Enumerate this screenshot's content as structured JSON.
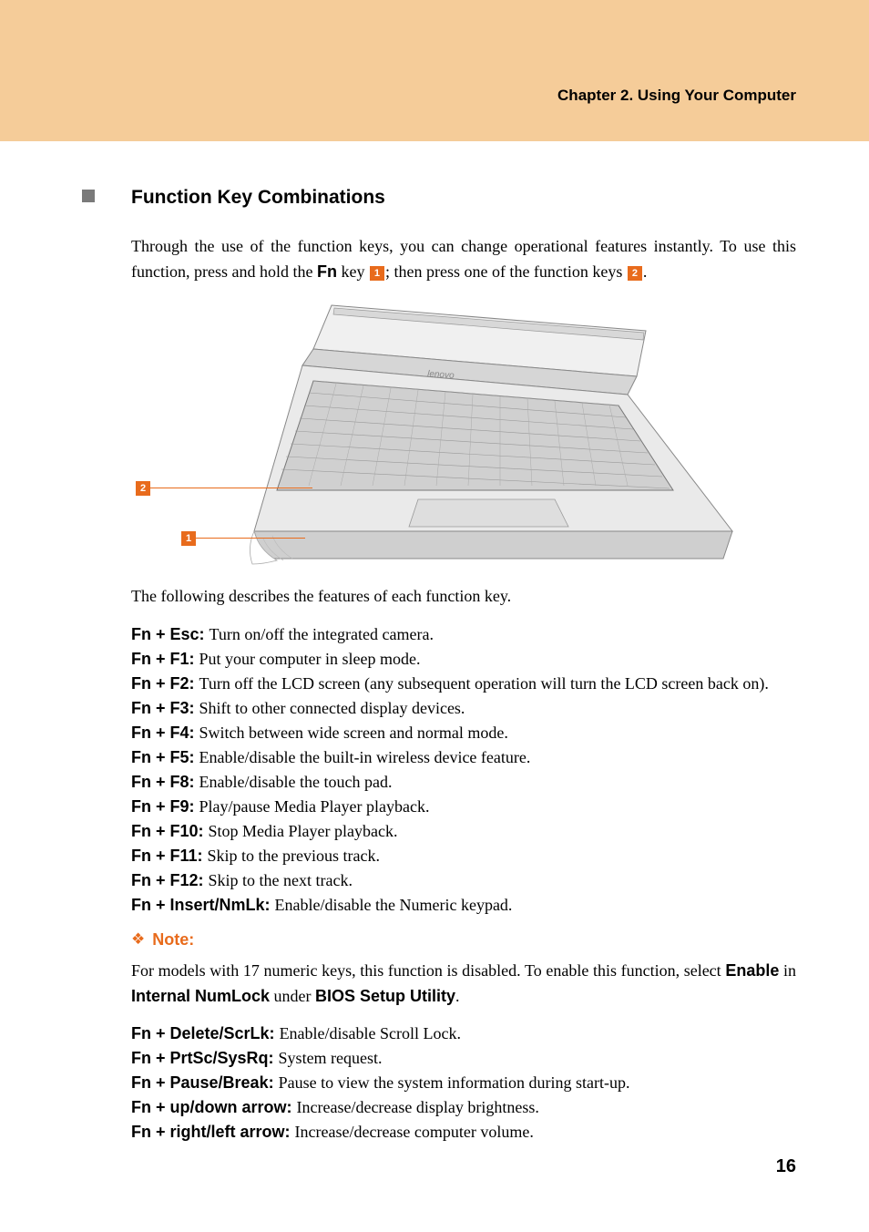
{
  "header": {
    "bg_color": "#f5cc99",
    "chapter_title": "Chapter 2. Using Your Computer"
  },
  "section": {
    "title": "Function Key Combinations",
    "intro_pre": "Through the use of the function keys, you can change operational features instantly. To use this function, press and hold the ",
    "fn_label": "Fn",
    "intro_mid": " key ",
    "badge1": "1",
    "intro_mid2": "; then press one of the function keys ",
    "badge2": "2",
    "intro_end": "."
  },
  "figure": {
    "callout1": "1",
    "callout2": "2"
  },
  "post_figure": "The following describes the features of each function key.",
  "fn_items_a": [
    {
      "key": "Fn + Esc:",
      "desc": "Turn on/off the integrated camera."
    },
    {
      "key": "Fn + F1:",
      "desc": "Put your computer in sleep mode."
    },
    {
      "key": "Fn + F2:",
      "desc": "Turn off the LCD screen (any subsequent operation will turn the LCD screen back on)."
    },
    {
      "key": "Fn + F3:",
      "desc": "Shift to other connected display devices."
    },
    {
      "key": "Fn + F4:",
      "desc": "Switch between wide screen and normal mode."
    },
    {
      "key": "Fn + F5:",
      "desc": "Enable/disable the built-in wireless device feature."
    },
    {
      "key": "Fn + F8:",
      "desc": "Enable/disable the touch pad."
    },
    {
      "key": "Fn + F9:",
      "desc": "Play/pause Media Player playback."
    },
    {
      "key": "Fn + F10:",
      "desc": "Stop Media Player playback."
    },
    {
      "key": "Fn + F11:",
      "desc": "Skip to the previous track."
    },
    {
      "key": "Fn + F12:",
      "desc": "Skip to the next track."
    },
    {
      "key": "Fn + Insert/NmLk:",
      "desc": "Enable/disable the Numeric keypad."
    }
  ],
  "note": {
    "label": "Note:",
    "text_pre": "For models with 17 numeric keys, this function is disabled. To enable this function, select ",
    "enable": "Enable",
    "text_mid1": " in ",
    "internal": "Internal NumLock",
    "text_mid2": " under ",
    "bios": "BIOS Setup Utility",
    "text_end": "."
  },
  "fn_items_b": [
    {
      "key": "Fn + Delete/ScrLk:",
      "desc": "Enable/disable Scroll Lock."
    },
    {
      "key": "Fn + PrtSc/SysRq:",
      "desc": "System request."
    },
    {
      "key": "Fn + Pause/Break:",
      "desc": "Pause to view the system information during start-up."
    },
    {
      "key": "Fn + up/down arrow:",
      "desc": "Increase/decrease display brightness."
    },
    {
      "key": "Fn + right/left arrow:",
      "desc": "Increase/decrease computer volume."
    }
  ],
  "page_number": "16",
  "colors": {
    "accent": "#e86b1c",
    "bullet": "#7a7a7a"
  }
}
